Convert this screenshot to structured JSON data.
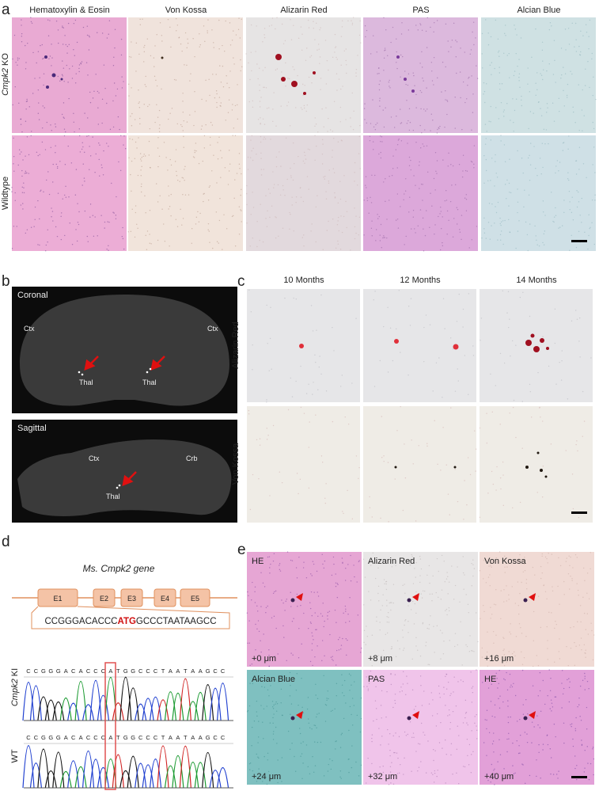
{
  "panel_a": {
    "label": "a",
    "columns": [
      "Hematoxylin & Eosin",
      "Von Kossa",
      "Alizarin Red",
      "PAS",
      "Alcian Blue"
    ],
    "rows": [
      {
        "gene": "Cmpk2",
        "suffix": "KO"
      },
      {
        "name": "Wildtype"
      }
    ]
  },
  "panel_b": {
    "label": "b",
    "views": [
      {
        "title": "Coronal",
        "labels": [
          "Ctx",
          "Ctx",
          "Thal",
          "Thal"
        ]
      },
      {
        "title": "Sagittal",
        "labels": [
          "Ctx",
          "Crb",
          "Thal"
        ]
      }
    ]
  },
  "panel_c": {
    "label": "c",
    "columns": [
      "10 Months",
      "12 Months",
      "14 Months"
    ],
    "rows": [
      "Alizarin Red",
      "Von Kossa"
    ]
  },
  "panel_d": {
    "label": "d",
    "title_prefix": "Ms.",
    "title_gene": "Cmpk2",
    "title_suffix": "gene",
    "exons": [
      "E1",
      "E2",
      "E3",
      "E4",
      "E5"
    ],
    "sequence": [
      "CCGGGACACCC",
      "ATG",
      "GCCCTAATAAGCC"
    ],
    "traces": [
      {
        "gene": "Cmpk2",
        "suffix": "KI",
        "bases": "CCGGGACACCCATGGCCCTAATAAGCC"
      },
      {
        "name": "WT",
        "bases": "CCGGGACACCCATGGCCCTAATAAGCC"
      }
    ]
  },
  "panel_e": {
    "label": "e",
    "tiles": [
      {
        "stain": "HE",
        "depth": "+0 μm"
      },
      {
        "stain": "Alizarin Red",
        "depth": "+8 μm"
      },
      {
        "stain": "Von Kossa",
        "depth": "+16 μm"
      },
      {
        "stain": "Alcian Blue",
        "depth": "+24 μm"
      },
      {
        "stain": "PAS",
        "depth": "+32 μm"
      },
      {
        "stain": "HE",
        "depth": "+40 μm"
      }
    ]
  }
}
